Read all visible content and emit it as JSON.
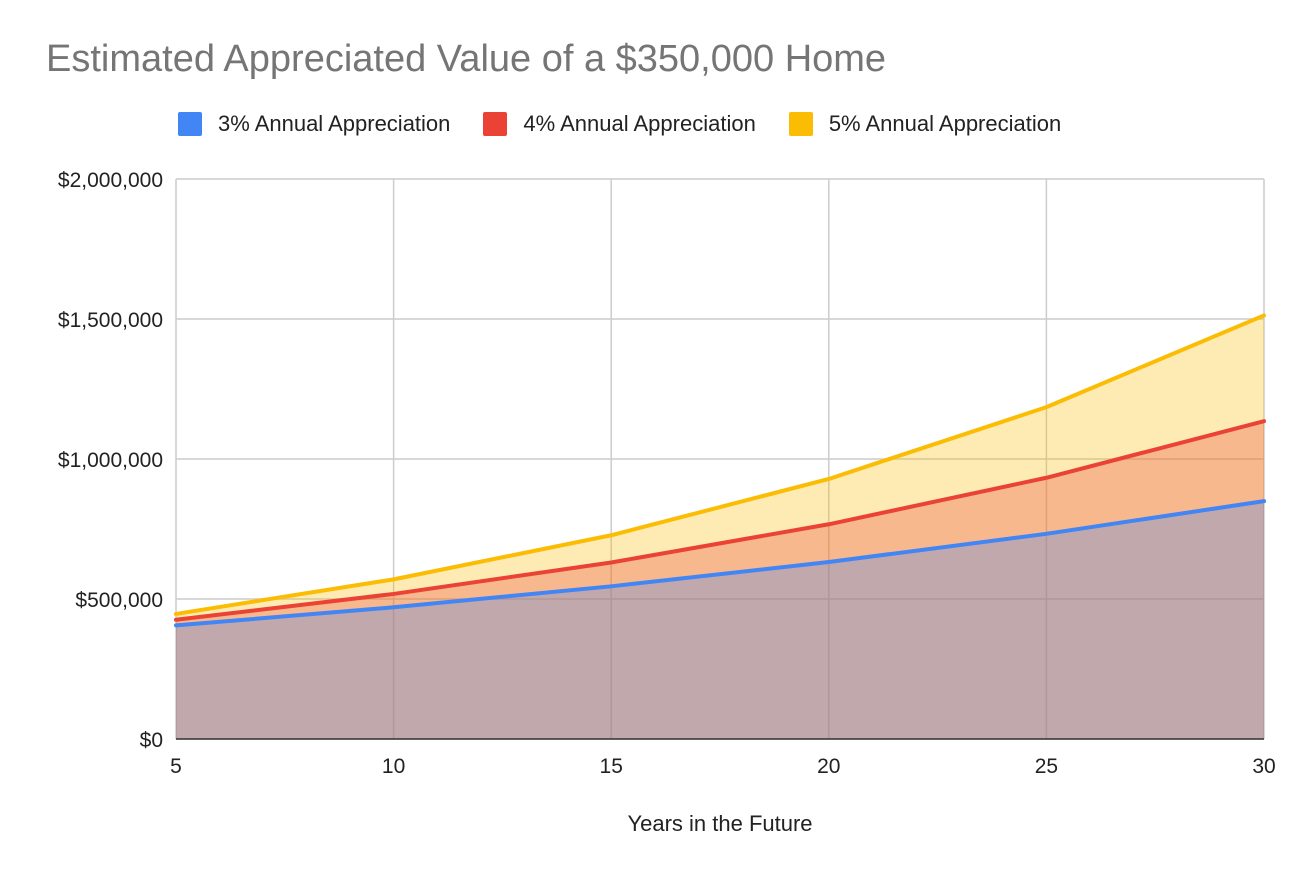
{
  "chart_data": {
    "type": "area",
    "title": "Estimated Appreciated Value of a $350,000 Home",
    "xlabel": "Years in the Future",
    "ylabel": "",
    "x": [
      5,
      10,
      15,
      20,
      25,
      30
    ],
    "x_ticks": [
      "5",
      "10",
      "15",
      "20",
      "25",
      "30"
    ],
    "y_ticks": [
      "$0",
      "$500,000",
      "$1,000,000",
      "$1,500,000",
      "$2,000,000"
    ],
    "y_tick_values": [
      0,
      500000,
      1000000,
      1500000,
      2000000
    ],
    "ylim": [
      0,
      2000000
    ],
    "xlim": [
      5,
      30
    ],
    "grid": true,
    "legend_position": "top",
    "series": [
      {
        "name": "3% Annual Appreciation",
        "color": "#4285F4",
        "values": [
          405750,
          470370,
          545280,
          632130,
          732810,
          849530
        ]
      },
      {
        "name": "4% Annual Appreciation",
        "color": "#EA4335",
        "values": [
          425830,
          518090,
          630330,
          766880,
          933010,
          1135140
        ]
      },
      {
        "name": "5% Annual Appreciation",
        "color": "#FBBC04",
        "values": [
          446700,
          570120,
          727630,
          928670,
          1185240,
          1512690
        ]
      }
    ]
  }
}
